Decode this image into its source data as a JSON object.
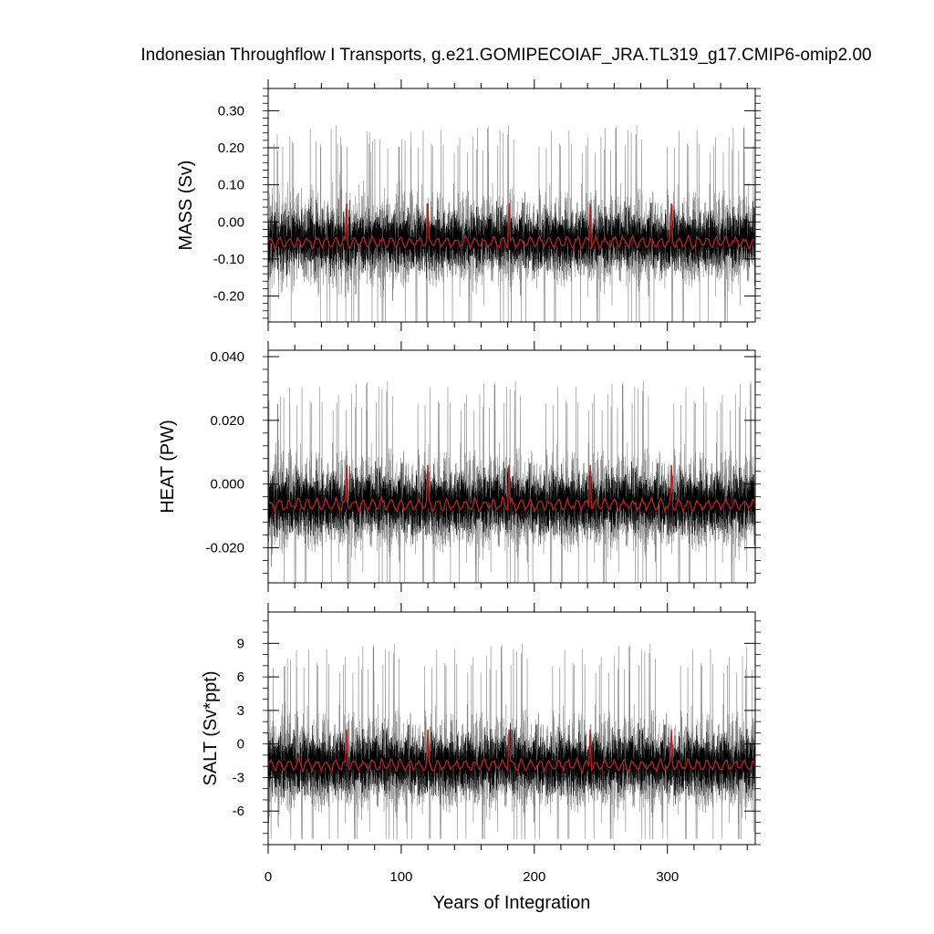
{
  "title": "Indonesian Throughflow I Transports, g.e21.GOMIPECOIAF_JRA.TL319_g17.CMIP6-omip2.00",
  "colors": {
    "raw": "#000000",
    "raw_light": "#808080",
    "smooth": "#b22222"
  },
  "chart_data": [
    {
      "type": "line",
      "ylabel": "MASS (Sv)",
      "ylim": [
        -0.27,
        0.36
      ],
      "yticks": [
        0.3,
        0.2,
        0.1,
        0.0,
        -0.1,
        -0.2
      ],
      "ytick_labels": [
        "0.30",
        "0.20",
        "0.10",
        "0.00",
        "-0.10",
        "-0.20"
      ],
      "yminor_step": 0.02,
      "xlim": [
        0,
        366
      ],
      "xticks": [
        0,
        100,
        200,
        300
      ],
      "xtick_labels": [
        "0",
        "100",
        "200",
        "300"
      ],
      "series": [
        {
          "role": "monthly",
          "mean": -0.05,
          "amplitude": 0.13,
          "peak": [
            -0.27,
            0.32
          ]
        },
        {
          "role": "annual-mean",
          "mean": -0.055,
          "amplitude": 0.012,
          "spike_years": [
            59,
            120,
            181,
            242,
            303
          ],
          "spike_value": 0.05
        }
      ]
    },
    {
      "type": "line",
      "ylabel": "HEAT (PW)",
      "ylim": [
        -0.031,
        0.042
      ],
      "yticks": [
        0.04,
        0.02,
        0.0,
        -0.02
      ],
      "ytick_labels": [
        "0.040",
        "0.020",
        "0.000",
        "-0.020"
      ],
      "yminor_step": 0.004,
      "xlim": [
        0,
        366
      ],
      "xticks": [
        0,
        100,
        200,
        300
      ],
      "xtick_labels": [
        "0",
        "100",
        "200",
        "300"
      ],
      "series": [
        {
          "role": "monthly",
          "mean": -0.006,
          "amplitude": 0.016,
          "peak": [
            -0.031,
            0.038
          ]
        },
        {
          "role": "annual-mean",
          "mean": -0.0065,
          "amplitude": 0.0015,
          "spike_years": [
            59,
            120,
            181,
            242,
            303
          ],
          "spike_value": 0.006
        }
      ]
    },
    {
      "type": "line",
      "ylabel": "SALT (Sv*ppt)",
      "ylim": [
        -9.0,
        11.8
      ],
      "yticks": [
        9,
        6,
        3,
        0,
        -3,
        -6
      ],
      "ytick_labels": [
        "9",
        "6",
        "3",
        "0",
        "-3",
        "-6"
      ],
      "yminor_step": 1,
      "xlim": [
        0,
        366
      ],
      "xticks": [
        0,
        100,
        200,
        300
      ],
      "xtick_labels": [
        "0",
        "100",
        "200",
        "300"
      ],
      "xlabel": "Years of Integration",
      "series": [
        {
          "role": "monthly",
          "mean": -1.8,
          "amplitude": 4.5,
          "peak": [
            -8.5,
            10.5
          ]
        },
        {
          "role": "annual-mean",
          "mean": -1.9,
          "amplitude": 0.4,
          "spike_years": [
            59,
            120,
            181,
            242,
            303
          ],
          "spike_value": 1.3
        }
      ]
    }
  ]
}
